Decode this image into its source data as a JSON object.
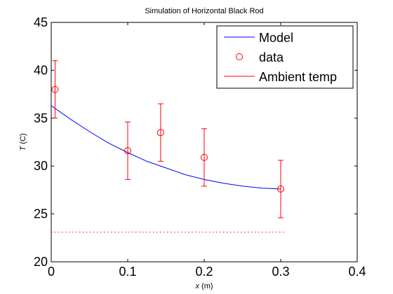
{
  "chart_data": {
    "type": "line",
    "title": "Simulation of Horizontal Black Rod",
    "xlabel": {
      "var": "x",
      "unit": " (m)"
    },
    "ylabel": {
      "var": "T",
      "unit": " (C)"
    },
    "xlim": [
      0,
      0.4
    ],
    "ylim": [
      20,
      45
    ],
    "xticks": [
      0,
      0.1,
      0.2,
      0.3,
      0.4
    ],
    "xtick_labels": [
      "0",
      "0.1",
      "0.2",
      "0.3",
      "0.4"
    ],
    "yticks": [
      20,
      25,
      30,
      35,
      40,
      45
    ],
    "ytick_labels": [
      "20",
      "25",
      "30",
      "35",
      "40",
      "45"
    ],
    "grid": false,
    "legend_position": "top-right",
    "legend": [
      {
        "label": "Model",
        "style": "line",
        "color": "#0000ff"
      },
      {
        "label": "data",
        "style": "circle",
        "color": "#ff0000"
      },
      {
        "label": "Ambient temp",
        "style": "line",
        "color": "#ff0000"
      }
    ],
    "series": [
      {
        "name": "Model",
        "kind": "line",
        "color": "#0000ff",
        "x": [
          0.0,
          0.025,
          0.05,
          0.075,
          0.1,
          0.125,
          0.15,
          0.175,
          0.2,
          0.225,
          0.25,
          0.275,
          0.3
        ],
        "y": [
          36.3,
          34.9,
          33.6,
          32.4,
          31.4,
          30.5,
          29.8,
          29.1,
          28.6,
          28.2,
          27.9,
          27.7,
          27.6
        ]
      },
      {
        "name": "data",
        "kind": "scatter_errorbar",
        "color": "#ff0000",
        "x": [
          0.005,
          0.1,
          0.143,
          0.2,
          0.3
        ],
        "y": [
          38.0,
          31.6,
          33.5,
          30.9,
          27.6
        ],
        "error": [
          3.0,
          3.0,
          3.0,
          3.0,
          3.0
        ]
      },
      {
        "name": "Ambient temp",
        "kind": "dotted_line",
        "color": "#ff0000",
        "x": [
          0.0,
          0.305
        ],
        "y": [
          23.1,
          23.1
        ]
      }
    ]
  }
}
